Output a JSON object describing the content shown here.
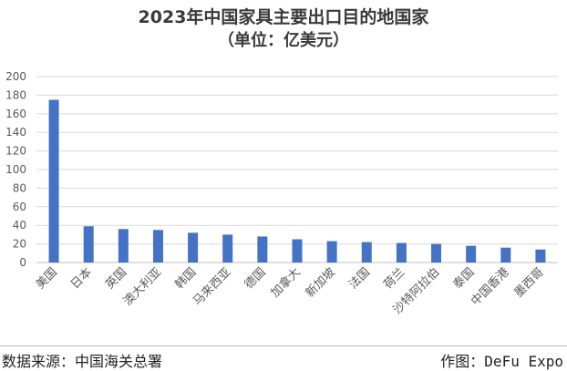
{
  "header": {
    "title": "2023年中国家具主要出口目的地国家",
    "subtitle": "（单位：亿美元）"
  },
  "footer": {
    "source": "数据来源：中国海关总署",
    "credit": "作图：DeFu Expo"
  },
  "chart_data": {
    "type": "bar",
    "title": "2023年中国家具主要出口目的地国家",
    "subtitle": "（单位：亿美元）",
    "categories": [
      "美国",
      "日本",
      "英国",
      "澳大利亚",
      "韩国",
      "马来西亚",
      "德国",
      "加拿大",
      "新加坡",
      "法国",
      "荷兰",
      "沙特阿拉伯",
      "泰国",
      "中国香港",
      "墨西哥"
    ],
    "values": [
      175,
      39,
      36,
      35,
      32,
      30,
      28,
      25,
      23,
      22,
      21,
      20,
      18,
      16,
      14
    ],
    "ylim": [
      0,
      200
    ],
    "yticks": [
      0,
      20,
      40,
      60,
      80,
      100,
      120,
      140,
      160,
      180,
      200
    ],
    "grid": true,
    "legend": "none",
    "colors": {
      "bar": "#4472c4",
      "grid": "#d9d9d9",
      "axis": "#bfbfbf"
    }
  }
}
